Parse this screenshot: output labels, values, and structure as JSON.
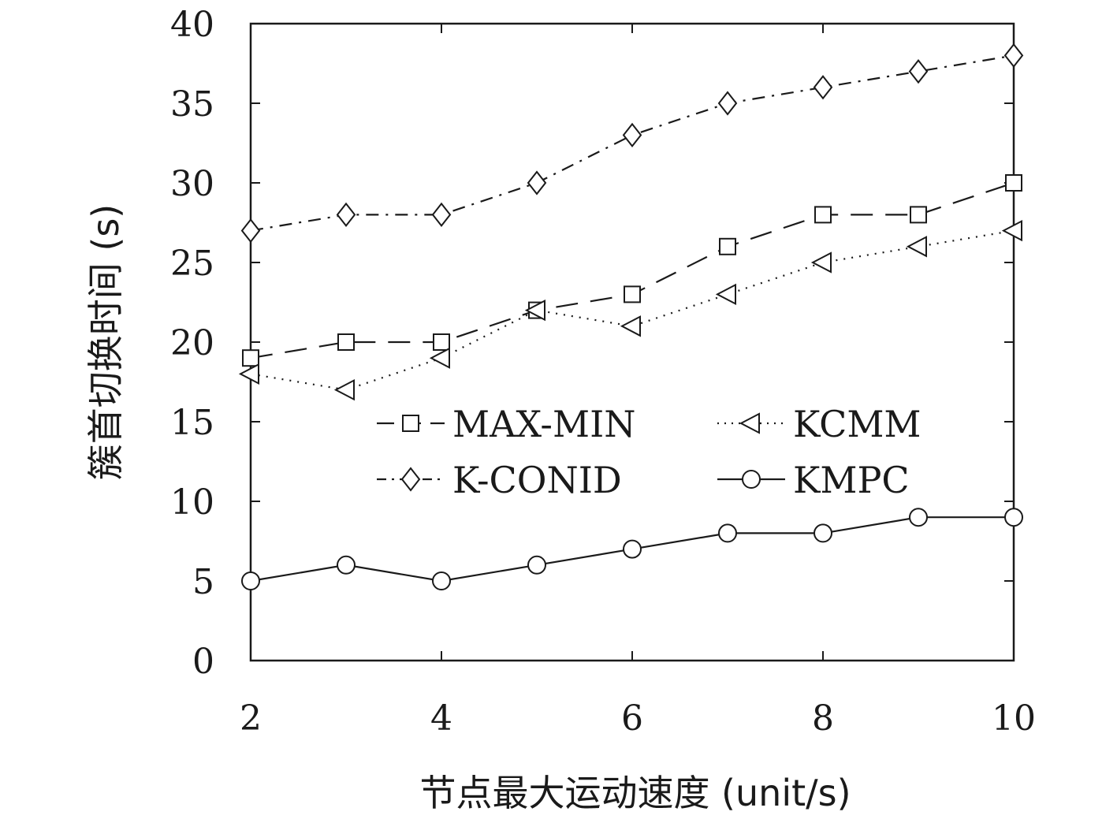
{
  "chart_data": {
    "type": "line",
    "title": "",
    "xlabel": "节点最大运动速度 (unit/s)",
    "ylabel": "簇首切换时间 (s)",
    "x": [
      2,
      3,
      4,
      5,
      6,
      7,
      8,
      9,
      10
    ],
    "xlim": [
      2,
      10
    ],
    "ylim": [
      0,
      40
    ],
    "xticks": [
      2,
      4,
      6,
      8,
      10
    ],
    "yticks": [
      0,
      5,
      10,
      15,
      20,
      25,
      30,
      35,
      40
    ],
    "grid": false,
    "legend_position": "center",
    "series": [
      {
        "name": "MAX-MIN",
        "marker": "square",
        "dash": "long-dash",
        "values": [
          19,
          20,
          20,
          22,
          23,
          26,
          28,
          28,
          30
        ]
      },
      {
        "name": "KCMM",
        "marker": "triangle-left",
        "dash": "dotted",
        "values": [
          18,
          17,
          19,
          22,
          21,
          23,
          25,
          26,
          27
        ]
      },
      {
        "name": "K-CONID",
        "marker": "diamond",
        "dash": "dash-dot",
        "values": [
          27,
          28,
          28,
          30,
          33,
          35,
          36,
          37,
          38
        ]
      },
      {
        "name": "KMPC",
        "marker": "circle",
        "dash": "solid",
        "values": [
          5,
          6,
          5,
          6,
          7,
          8,
          8,
          9,
          9
        ]
      }
    ]
  }
}
